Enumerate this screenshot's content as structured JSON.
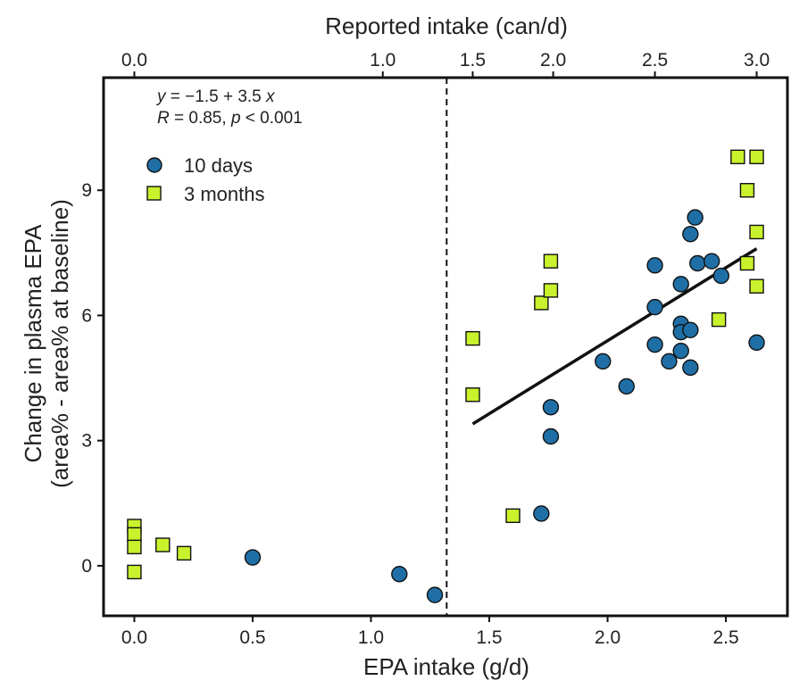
{
  "chart_data": {
    "type": "scatter",
    "xlabel": "EPA intake (g/d)",
    "ylabel_line1": "Change in plasma EPA",
    "ylabel_line2": "(area% - area% at baseline)",
    "x2label": "Reported intake (can/d)",
    "xlim": [
      -0.13,
      2.76
    ],
    "ylim": [
      -1.2,
      11.7
    ],
    "x_ticks": [
      0.0,
      0.5,
      1.0,
      1.5,
      2.0,
      2.5
    ],
    "x_tick_labels": [
      "0.0",
      "0.5",
      "1.0",
      "1.5",
      "2.0",
      "2.5"
    ],
    "y_ticks": [
      0,
      3,
      6,
      9
    ],
    "y_tick_labels": [
      "0",
      "3",
      "6",
      "9"
    ],
    "x2_ticks": [
      0.0,
      1.0,
      1.5,
      2.0,
      2.5,
      3.0
    ],
    "x2_tick_labels": [
      "0.0",
      "1.0",
      "1.5",
      "2.0",
      "2.5",
      "3.0"
    ],
    "x2_tick_positions_data_x": [
      0.0,
      1.05,
      1.43,
      1.77,
      2.2,
      2.63
    ],
    "equation": {
      "y_label": "y",
      "equals": " = −1.5 + 3.5 ",
      "x_label": "x",
      "r_label": "R",
      "r_value": " = 0.85, ",
      "p_label": "p",
      "p_value": " < 0.001"
    },
    "vline_x": 1.32,
    "fit_line": {
      "x": [
        1.43,
        2.63
      ],
      "y": [
        3.4,
        7.6
      ]
    },
    "series": [
      {
        "name": "10 days",
        "marker": "circle",
        "color": "#1f6fa6",
        "points": [
          [
            0.5,
            0.2
          ],
          [
            1.12,
            -0.2
          ],
          [
            1.27,
            -0.7
          ],
          [
            1.72,
            1.25
          ],
          [
            1.76,
            3.8
          ],
          [
            1.76,
            3.1
          ],
          [
            1.98,
            4.9
          ],
          [
            2.08,
            4.3
          ],
          [
            2.2,
            7.2
          ],
          [
            2.2,
            6.2
          ],
          [
            2.2,
            5.3
          ],
          [
            2.26,
            4.9
          ],
          [
            2.31,
            6.75
          ],
          [
            2.31,
            5.8
          ],
          [
            2.31,
            5.6
          ],
          [
            2.31,
            5.15
          ],
          [
            2.35,
            7.95
          ],
          [
            2.35,
            5.65
          ],
          [
            2.35,
            4.75
          ],
          [
            2.37,
            8.35
          ],
          [
            2.38,
            7.25
          ],
          [
            2.44,
            7.3
          ],
          [
            2.48,
            6.95
          ],
          [
            2.63,
            5.35
          ]
        ]
      },
      {
        "name": "3 months",
        "marker": "square",
        "color": "#c9f22c",
        "points": [
          [
            0.0,
            0.95
          ],
          [
            0.0,
            0.75
          ],
          [
            0.0,
            0.45
          ],
          [
            0.0,
            -0.15
          ],
          [
            0.12,
            0.5
          ],
          [
            0.21,
            0.3
          ],
          [
            1.43,
            5.45
          ],
          [
            1.43,
            4.1
          ],
          [
            1.6,
            1.2
          ],
          [
            1.72,
            6.3
          ],
          [
            1.76,
            7.3
          ],
          [
            1.76,
            6.6
          ],
          [
            2.47,
            5.9
          ],
          [
            2.55,
            9.8
          ],
          [
            2.59,
            9.0
          ],
          [
            2.59,
            7.25
          ],
          [
            2.63,
            9.8
          ],
          [
            2.63,
            8.0
          ],
          [
            2.63,
            6.7
          ]
        ]
      }
    ],
    "legend_position": "top-left"
  }
}
